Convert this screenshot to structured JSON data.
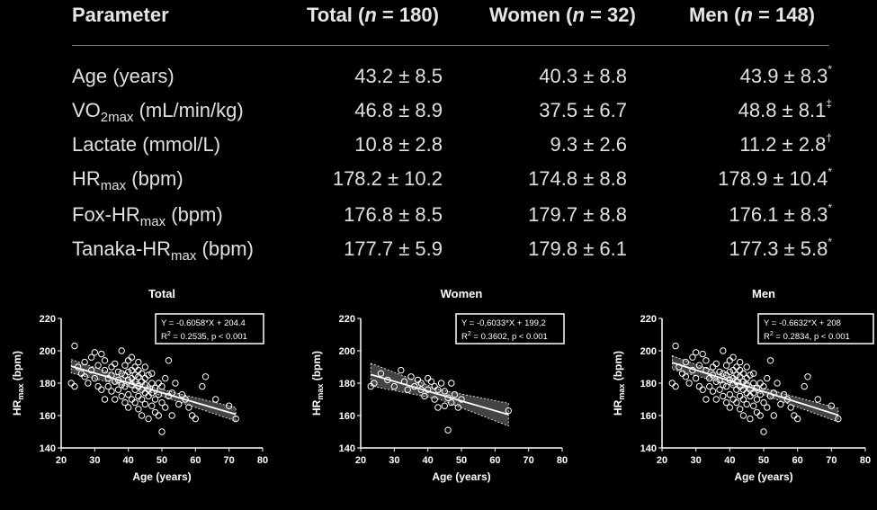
{
  "table": {
    "headers": {
      "parameter": "Parameter",
      "total_pre": "Total (",
      "total_n": "n",
      "total_post": " = 180)",
      "women_pre": "Women (",
      "women_n": "n",
      "women_post": " = 32)",
      "men_pre": "Men (",
      "men_n": "n",
      "men_post": " = 148)"
    },
    "rows": [
      {
        "label": "Age (years)",
        "label_main": "Age (years)",
        "label_sub": "",
        "label_tail": "",
        "total": "43.2 ± 8.5",
        "women": "40.3 ± 8.8",
        "men": "43.9 ± 8.3",
        "men_mark": "*"
      },
      {
        "label": "VO2max (mL/min/kg)",
        "label_main": "VO",
        "label_sub": "2max",
        "label_tail": " (mL/min/kg)",
        "total": "46.8 ± 8.9",
        "women": "37.5 ± 6.7",
        "men": "48.8 ± 8.1",
        "men_mark": "‡"
      },
      {
        "label": "Lactate (mmol/L)",
        "label_main": "Lactate (mmol/L)",
        "label_sub": "",
        "label_tail": "",
        "total": "10.8 ± 2.8",
        "women": "9.3 ± 2.6",
        "men": "11.2 ± 2.8",
        "men_mark": "†"
      },
      {
        "label": "HRmax (bpm)",
        "label_main": "HR",
        "label_sub": "max",
        "label_tail": " (bpm)",
        "total": "178.2 ± 10.2",
        "women": "174.8 ± 8.8",
        "men": "178.9 ± 10.4",
        "men_mark": "*"
      },
      {
        "label": "Fox-HRmax (bpm)",
        "label_main": "Fox-HR",
        "label_sub": "max",
        "label_tail": " (bpm)",
        "total": "176.8 ± 8.5",
        "women": "179.7 ± 8.8",
        "men": "176.1 ± 8.3",
        "men_mark": "*"
      },
      {
        "label": "Tanaka-HRmax (bpm)",
        "label_main": "Tanaka-HR",
        "label_sub": "max",
        "label_tail": " (bpm)",
        "total": "177.7 ± 5.9",
        "women": "179.8 ± 6.1",
        "men": "177.3 ± 5.8",
        "men_mark": "*"
      }
    ]
  },
  "colors": {
    "background": "#000000",
    "foreground": "#ffffff",
    "text": "#e0e0e0"
  },
  "chart_data": [
    {
      "type": "scatter",
      "title": "Total",
      "xlabel": "Age (years)",
      "ylabel_main": "HR",
      "ylabel_sub": "max",
      "ylabel_tail": " (bpm)",
      "xlim": [
        20,
        80
      ],
      "ylim": [
        140,
        220
      ],
      "xticks": [
        20,
        30,
        40,
        50,
        60,
        70,
        80
      ],
      "yticks": [
        140,
        160,
        180,
        200,
        220
      ],
      "equation": "Y = -0.6058*X + 204.4",
      "r2_main": "R",
      "r2_sup": "2",
      "r2_rest": " = 0.2535, p < 0.001",
      "line": {
        "slope": -0.6058,
        "intercept": 204.4,
        "x_range": [
          23,
          72
        ]
      },
      "ci_halfwidth": 3,
      "x": [
        23,
        24,
        24,
        25,
        26,
        27,
        27,
        28,
        29,
        29,
        30,
        30,
        31,
        31,
        32,
        32,
        33,
        33,
        33,
        34,
        34,
        35,
        35,
        35,
        36,
        36,
        36,
        37,
        37,
        37,
        38,
        38,
        38,
        38,
        39,
        39,
        39,
        39,
        40,
        40,
        40,
        40,
        40,
        41,
        41,
        41,
        41,
        41,
        42,
        42,
        42,
        42,
        42,
        43,
        43,
        43,
        43,
        43,
        43,
        44,
        44,
        44,
        44,
        44,
        45,
        45,
        45,
        45,
        45,
        46,
        46,
        46,
        46,
        47,
        47,
        47,
        47,
        48,
        48,
        48,
        49,
        49,
        49,
        50,
        50,
        50,
        51,
        51,
        52,
        52,
        53,
        53,
        54,
        55,
        56,
        57,
        58,
        59,
        60,
        62,
        63,
        66,
        70,
        72
      ],
      "y": [
        180,
        203,
        178,
        190,
        186,
        193,
        184,
        180,
        196,
        188,
        199,
        183,
        178,
        191,
        198,
        176,
        188,
        194,
        170,
        183,
        178,
        190,
        175,
        185,
        181,
        192,
        170,
        187,
        176,
        182,
        200,
        179,
        172,
        186,
        185,
        168,
        191,
        178,
        194,
        182,
        173,
        187,
        165,
        179,
        188,
        183,
        170,
        196,
        181,
        176,
        190,
        168,
        185,
        178,
        193,
        172,
        184,
        164,
        188,
        181,
        176,
        170,
        186,
        160,
        179,
        183,
        174,
        190,
        167,
        176,
        172,
        185,
        158,
        180,
        174,
        166,
        186,
        177,
        170,
        162,
        173,
        180,
        160,
        178,
        168,
        150,
        183,
        165,
        172,
        194,
        174,
        160,
        180,
        167,
        173,
        170,
        165,
        160,
        158,
        178,
        184,
        170,
        166,
        158
      ]
    },
    {
      "type": "scatter",
      "title": "Women",
      "xlabel": "Age (years)",
      "ylabel_main": "HR",
      "ylabel_sub": "max",
      "ylabel_tail": " (bpm)",
      "xlim": [
        20,
        80
      ],
      "ylim": [
        140,
        220
      ],
      "xticks": [
        20,
        30,
        40,
        50,
        60,
        70,
        80
      ],
      "yticks": [
        140,
        160,
        180,
        200,
        220
      ],
      "equation": "Y = -0,6033*X + 199,2",
      "r2_main": "R",
      "r2_sup": "2",
      "r2_rest": " = 0.3602, p < 0.001",
      "line": {
        "slope": -0.6033,
        "intercept": 199.2,
        "x_range": [
          23,
          64
        ]
      },
      "ci_halfwidth": 5,
      "x": [
        23,
        24,
        26,
        28,
        30,
        32,
        33,
        34,
        35,
        36,
        37,
        38,
        38,
        39,
        40,
        40,
        41,
        42,
        42,
        43,
        43,
        44,
        45,
        45,
        46,
        46,
        47,
        47,
        48,
        49,
        50,
        64
      ],
      "y": [
        178,
        180,
        186,
        182,
        178,
        188,
        181,
        176,
        184,
        178,
        182,
        180,
        176,
        172,
        183,
        176,
        181,
        178,
        170,
        176,
        165,
        180,
        166,
        175,
        171,
        151,
        180,
        168,
        173,
        165,
        170,
        163
      ]
    },
    {
      "type": "scatter",
      "title": "Men",
      "xlabel": "Age (years)",
      "ylabel_main": "HR",
      "ylabel_sub": "max",
      "ylabel_tail": " (bpm)",
      "xlim": [
        20,
        80
      ],
      "ylim": [
        140,
        220
      ],
      "xticks": [
        20,
        30,
        40,
        50,
        60,
        70,
        80
      ],
      "yticks": [
        140,
        160,
        180,
        200,
        220
      ],
      "equation": "Y = -0.6632*X + 208",
      "r2_main": "R",
      "r2_sup": "2",
      "r2_rest": " = 0.2834, p < 0.001",
      "line": {
        "slope": -0.6632,
        "intercept": 208,
        "x_range": [
          23,
          72
        ]
      },
      "ci_halfwidth": 3,
      "x": [
        23,
        24,
        24,
        25,
        26,
        27,
        27,
        28,
        29,
        29,
        30,
        30,
        31,
        31,
        32,
        32,
        33,
        33,
        33,
        34,
        34,
        35,
        35,
        35,
        36,
        36,
        36,
        37,
        37,
        37,
        38,
        38,
        38,
        38,
        39,
        39,
        39,
        39,
        40,
        40,
        40,
        40,
        40,
        41,
        41,
        41,
        41,
        41,
        42,
        42,
        42,
        42,
        42,
        43,
        43,
        43,
        43,
        43,
        43,
        44,
        44,
        44,
        44,
        44,
        45,
        45,
        45,
        45,
        45,
        46,
        46,
        46,
        46,
        47,
        47,
        47,
        47,
        48,
        48,
        48,
        49,
        49,
        49,
        50,
        50,
        50,
        51,
        51,
        52,
        52,
        53,
        53,
        54,
        55,
        56,
        57,
        58,
        59,
        60,
        62,
        63,
        66,
        70,
        72
      ],
      "y": [
        180,
        203,
        178,
        190,
        186,
        193,
        184,
        180,
        196,
        188,
        199,
        183,
        178,
        191,
        198,
        176,
        188,
        194,
        170,
        183,
        178,
        190,
        175,
        185,
        181,
        192,
        170,
        187,
        176,
        182,
        200,
        179,
        172,
        186,
        185,
        168,
        191,
        178,
        194,
        182,
        173,
        187,
        165,
        179,
        188,
        183,
        170,
        196,
        181,
        176,
        190,
        168,
        185,
        178,
        193,
        172,
        184,
        164,
        188,
        181,
        176,
        170,
        186,
        160,
        179,
        183,
        174,
        190,
        167,
        176,
        172,
        185,
        158,
        180,
        174,
        166,
        186,
        177,
        170,
        162,
        173,
        180,
        160,
        178,
        168,
        150,
        183,
        165,
        172,
        194,
        174,
        160,
        180,
        167,
        173,
        170,
        165,
        160,
        158,
        178,
        184,
        170,
        166,
        158
      ]
    }
  ]
}
